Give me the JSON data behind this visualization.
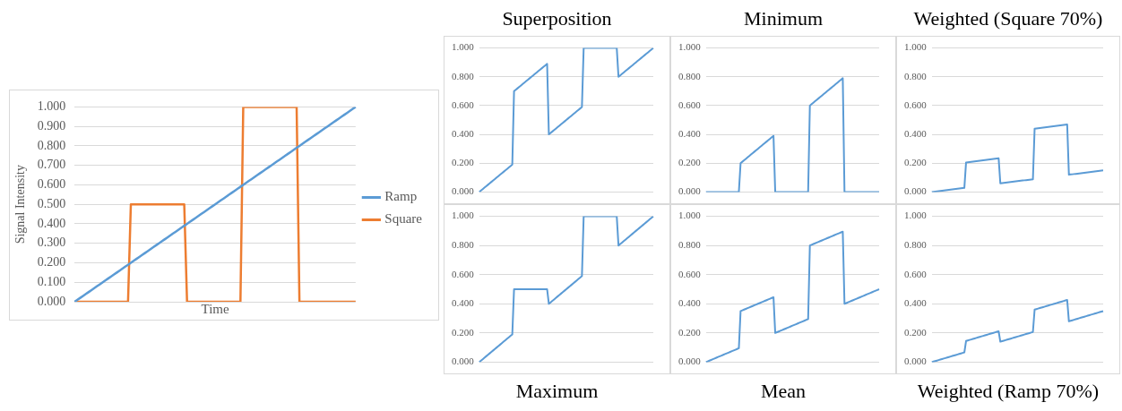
{
  "chart_data": [
    {
      "type": "line",
      "xlabel": "Time",
      "ylabel": "Signal Intensity",
      "legend": "right",
      "grid": "y",
      "marker": "none",
      "categories": [
        null,
        null,
        null,
        null,
        null,
        null,
        null,
        null,
        null,
        null,
        null,
        null,
        null,
        null,
        null,
        null,
        null,
        null,
        null,
        null,
        null,
        null,
        null,
        null,
        null,
        null,
        null,
        null,
        null,
        null,
        null,
        null,
        null,
        null,
        null,
        null,
        null,
        null,
        null,
        null,
        null,
        null,
        null,
        null,
        null,
        null,
        null,
        null,
        null,
        null,
        null,
        null,
        null,
        null,
        null,
        null,
        null,
        null,
        null,
        null,
        null,
        null,
        null,
        null,
        null,
        null,
        null,
        null,
        null,
        null,
        null,
        null,
        null,
        null,
        null,
        null,
        null,
        null,
        null,
        null,
        null,
        null,
        null,
        null,
        null,
        null,
        null,
        null,
        null,
        null,
        null,
        null,
        null,
        null,
        null,
        null,
        null,
        null,
        null,
        null,
        null
      ],
      "ylim": [
        0,
        1
      ],
      "yticks": [
        {
          "value": 0,
          "label": "0.000"
        },
        {
          "value": 0.1,
          "label": "0.100"
        },
        {
          "value": 0.2,
          "label": "0.200"
        },
        {
          "value": 0.3,
          "label": "0.300"
        },
        {
          "value": 0.4,
          "label": "0.400"
        },
        {
          "value": 0.5,
          "label": "0.500"
        },
        {
          "value": 0.6,
          "label": "0.600"
        },
        {
          "value": 0.7,
          "label": "0.700"
        },
        {
          "value": 0.8,
          "label": "0.800"
        },
        {
          "value": 0.9,
          "label": "0.900"
        },
        {
          "value": 1,
          "label": "1.000"
        }
      ],
      "series": [
        {
          "name": "Ramp",
          "color": "#5b9bd5",
          "values": [
            0,
            0.01,
            0.02,
            0.03,
            0.04,
            0.05,
            0.06,
            0.07,
            0.08,
            0.09,
            0.1,
            0.11,
            0.12,
            0.13,
            0.14,
            0.15,
            0.16,
            0.17,
            0.18,
            0.19,
            0.2,
            0.21,
            0.22,
            0.23,
            0.24,
            0.25,
            0.26,
            0.27,
            0.28,
            0.29,
            0.3,
            0.31,
            0.32,
            0.33,
            0.34,
            0.35,
            0.36,
            0.37,
            0.38,
            0.39,
            0.4,
            0.41,
            0.42,
            0.43,
            0.44,
            0.45,
            0.46,
            0.47,
            0.48,
            0.49,
            0.5,
            0.51,
            0.52,
            0.53,
            0.54,
            0.55,
            0.56,
            0.57,
            0.58,
            0.59,
            0.6,
            0.61,
            0.62,
            0.63,
            0.64,
            0.65,
            0.66,
            0.67,
            0.68,
            0.69,
            0.7,
            0.71,
            0.72,
            0.73,
            0.74,
            0.75,
            0.76,
            0.77,
            0.78,
            0.79,
            0.8,
            0.81,
            0.82,
            0.83,
            0.84,
            0.85,
            0.86,
            0.87,
            0.88,
            0.89,
            0.9,
            0.91,
            0.92,
            0.93,
            0.94,
            0.95,
            0.96,
            0.97,
            0.98,
            0.99,
            1
          ]
        },
        {
          "name": "Square",
          "color": "#ed7d31",
          "values": [
            0,
            0,
            0,
            0,
            0,
            0,
            0,
            0,
            0,
            0,
            0,
            0,
            0,
            0,
            0,
            0,
            0,
            0,
            0,
            0,
            0.5,
            0.5,
            0.5,
            0.5,
            0.5,
            0.5,
            0.5,
            0.5,
            0.5,
            0.5,
            0.5,
            0.5,
            0.5,
            0.5,
            0.5,
            0.5,
            0.5,
            0.5,
            0.5,
            0.5,
            0,
            0,
            0,
            0,
            0,
            0,
            0,
            0,
            0,
            0,
            0,
            0,
            0,
            0,
            0,
            0,
            0,
            0,
            0,
            0,
            1,
            1,
            1,
            1,
            1,
            1,
            1,
            1,
            1,
            1,
            1,
            1,
            1,
            1,
            1,
            1,
            1,
            1,
            1,
            1,
            0,
            0,
            0,
            0,
            0,
            0,
            0,
            0,
            0,
            0,
            0,
            0,
            0,
            0,
            0,
            0,
            0,
            0,
            0,
            0,
            0
          ]
        }
      ]
    },
    {
      "type": "line",
      "title": "Superposition",
      "grid": "y",
      "marker": "none",
      "categories": [
        null,
        null,
        null,
        null,
        null,
        null,
        null,
        null,
        null,
        null,
        null,
        null,
        null,
        null,
        null,
        null,
        null,
        null,
        null,
        null,
        null,
        null,
        null,
        null,
        null,
        null,
        null,
        null,
        null,
        null,
        null,
        null,
        null,
        null,
        null,
        null,
        null,
        null,
        null,
        null,
        null,
        null,
        null,
        null,
        null,
        null,
        null,
        null,
        null,
        null,
        null,
        null,
        null,
        null,
        null,
        null,
        null,
        null,
        null,
        null,
        null,
        null,
        null,
        null,
        null,
        null,
        null,
        null,
        null,
        null,
        null,
        null,
        null,
        null,
        null,
        null,
        null,
        null,
        null,
        null,
        null,
        null,
        null,
        null,
        null,
        null,
        null,
        null,
        null,
        null,
        null,
        null,
        null,
        null,
        null,
        null,
        null,
        null,
        null,
        null,
        null
      ],
      "ylim": [
        0,
        1
      ],
      "yticks": [
        {
          "value": 0,
          "label": "0.000"
        },
        {
          "value": 0.2,
          "label": "0.200"
        },
        {
          "value": 0.4,
          "label": "0.400"
        },
        {
          "value": 0.6,
          "label": "0.600"
        },
        {
          "value": 0.8,
          "label": "0.800"
        },
        {
          "value": 1,
          "label": "1.000"
        }
      ],
      "series": [
        {
          "color": "#5b9bd5",
          "values": [
            0,
            0.01,
            0.02,
            0.03,
            0.04,
            0.05,
            0.06,
            0.07,
            0.08,
            0.09,
            0.1,
            0.11,
            0.12,
            0.13,
            0.14,
            0.15,
            0.16,
            0.17,
            0.18,
            0.19,
            0.7,
            0.71,
            0.72,
            0.73,
            0.74,
            0.75,
            0.76,
            0.77,
            0.78,
            0.79,
            0.8,
            0.81,
            0.82,
            0.83,
            0.84,
            0.85,
            0.86,
            0.87,
            0.88,
            0.89,
            0.4,
            0.41,
            0.42,
            0.43,
            0.44,
            0.45,
            0.46,
            0.47,
            0.48,
            0.49,
            0.5,
            0.51,
            0.52,
            0.53,
            0.54,
            0.55,
            0.56,
            0.57,
            0.58,
            0.59,
            1,
            1,
            1,
            1,
            1,
            1,
            1,
            1,
            1,
            1,
            1,
            1,
            1,
            1,
            1,
            1,
            1,
            1,
            1,
            1,
            0.8,
            0.81,
            0.82,
            0.83,
            0.84,
            0.85,
            0.86,
            0.87,
            0.88,
            0.89,
            0.9,
            0.91,
            0.92,
            0.93,
            0.94,
            0.95,
            0.96,
            0.97,
            0.98,
            0.99,
            1
          ]
        }
      ]
    },
    {
      "type": "line",
      "title": "Minimum",
      "grid": "y",
      "marker": "none",
      "categories": [
        null,
        null,
        null,
        null,
        null,
        null,
        null,
        null,
        null,
        null,
        null,
        null,
        null,
        null,
        null,
        null,
        null,
        null,
        null,
        null,
        null,
        null,
        null,
        null,
        null,
        null,
        null,
        null,
        null,
        null,
        null,
        null,
        null,
        null,
        null,
        null,
        null,
        null,
        null,
        null,
        null,
        null,
        null,
        null,
        null,
        null,
        null,
        null,
        null,
        null,
        null,
        null,
        null,
        null,
        null,
        null,
        null,
        null,
        null,
        null,
        null,
        null,
        null,
        null,
        null,
        null,
        null,
        null,
        null,
        null,
        null,
        null,
        null,
        null,
        null,
        null,
        null,
        null,
        null,
        null,
        null,
        null,
        null,
        null,
        null,
        null,
        null,
        null,
        null,
        null,
        null,
        null,
        null,
        null,
        null,
        null,
        null,
        null,
        null,
        null,
        null
      ],
      "ylim": [
        0,
        1
      ],
      "yticks": [
        {
          "value": 0,
          "label": "0.000"
        },
        {
          "value": 0.2,
          "label": "0.200"
        },
        {
          "value": 0.4,
          "label": "0.400"
        },
        {
          "value": 0.6,
          "label": "0.600"
        },
        {
          "value": 0.8,
          "label": "0.800"
        },
        {
          "value": 1,
          "label": "1.000"
        }
      ],
      "series": [
        {
          "color": "#5b9bd5",
          "values": [
            0,
            0,
            0,
            0,
            0,
            0,
            0,
            0,
            0,
            0,
            0,
            0,
            0,
            0,
            0,
            0,
            0,
            0,
            0,
            0,
            0.2,
            0.21,
            0.22,
            0.23,
            0.24,
            0.25,
            0.26,
            0.27,
            0.28,
            0.29,
            0.3,
            0.31,
            0.32,
            0.33,
            0.34,
            0.35,
            0.36,
            0.37,
            0.38,
            0.39,
            0,
            0,
            0,
            0,
            0,
            0,
            0,
            0,
            0,
            0,
            0,
            0,
            0,
            0,
            0,
            0,
            0,
            0,
            0,
            0,
            0.6,
            0.61,
            0.62,
            0.63,
            0.64,
            0.65,
            0.66,
            0.67,
            0.68,
            0.69,
            0.7,
            0.71,
            0.72,
            0.73,
            0.74,
            0.75,
            0.76,
            0.77,
            0.78,
            0.79,
            0,
            0,
            0,
            0,
            0,
            0,
            0,
            0,
            0,
            0,
            0,
            0,
            0,
            0,
            0,
            0,
            0,
            0,
            0,
            0,
            0
          ]
        }
      ]
    },
    {
      "type": "line",
      "title": "Weighted (Square 70%)",
      "grid": "y",
      "marker": "none",
      "categories": [
        null,
        null,
        null,
        null,
        null,
        null,
        null,
        null,
        null,
        null,
        null,
        null,
        null,
        null,
        null,
        null,
        null,
        null,
        null,
        null,
        null,
        null,
        null,
        null,
        null,
        null,
        null,
        null,
        null,
        null,
        null,
        null,
        null,
        null,
        null,
        null,
        null,
        null,
        null,
        null,
        null,
        null,
        null,
        null,
        null,
        null,
        null,
        null,
        null,
        null,
        null,
        null,
        null,
        null,
        null,
        null,
        null,
        null,
        null,
        null,
        null,
        null,
        null,
        null,
        null,
        null,
        null,
        null,
        null,
        null,
        null,
        null,
        null,
        null,
        null,
        null,
        null,
        null,
        null,
        null,
        null,
        null,
        null,
        null,
        null,
        null,
        null,
        null,
        null,
        null,
        null,
        null,
        null,
        null,
        null,
        null,
        null,
        null,
        null,
        null,
        null
      ],
      "ylim": [
        0,
        1
      ],
      "yticks": [
        {
          "value": 0,
          "label": "0.000"
        },
        {
          "value": 0.2,
          "label": "0.200"
        },
        {
          "value": 0.4,
          "label": "0.400"
        },
        {
          "value": 0.6,
          "label": "0.600"
        },
        {
          "value": 0.8,
          "label": "0.800"
        },
        {
          "value": 1,
          "label": "1.000"
        }
      ],
      "series": [
        {
          "color": "#5b9bd5",
          "values": [
            0,
            0.0015,
            0.003,
            0.0045,
            0.006,
            0.0075,
            0.009,
            0.0105,
            0.012,
            0.0135,
            0.015,
            0.0165,
            0.018,
            0.0195,
            0.021,
            0.0225,
            0.024,
            0.0255,
            0.027,
            0.0285,
            0.205,
            0.2065,
            0.208,
            0.2095,
            0.211,
            0.2125,
            0.214,
            0.2155,
            0.217,
            0.2185,
            0.22,
            0.2215,
            0.223,
            0.2245,
            0.226,
            0.2275,
            0.229,
            0.2305,
            0.232,
            0.2335,
            0.06,
            0.0615,
            0.063,
            0.0645,
            0.066,
            0.0675,
            0.069,
            0.0705,
            0.072,
            0.0735,
            0.075,
            0.0765,
            0.078,
            0.0795,
            0.081,
            0.0825,
            0.084,
            0.0855,
            0.087,
            0.0885,
            0.44,
            0.4415,
            0.443,
            0.4445,
            0.446,
            0.4475,
            0.449,
            0.4505,
            0.452,
            0.4535,
            0.455,
            0.4565,
            0.458,
            0.4595,
            0.461,
            0.4625,
            0.464,
            0.4655,
            0.467,
            0.4685,
            0.12,
            0.1215,
            0.123,
            0.1245,
            0.126,
            0.1275,
            0.129,
            0.1305,
            0.132,
            0.1335,
            0.135,
            0.1365,
            0.138,
            0.1395,
            0.141,
            0.1425,
            0.144,
            0.1455,
            0.147,
            0.1485,
            0.15
          ]
        }
      ]
    },
    {
      "type": "line",
      "title": "Maximum",
      "grid": "y",
      "marker": "none",
      "categories": [
        null,
        null,
        null,
        null,
        null,
        null,
        null,
        null,
        null,
        null,
        null,
        null,
        null,
        null,
        null,
        null,
        null,
        null,
        null,
        null,
        null,
        null,
        null,
        null,
        null,
        null,
        null,
        null,
        null,
        null,
        null,
        null,
        null,
        null,
        null,
        null,
        null,
        null,
        null,
        null,
        null,
        null,
        null,
        null,
        null,
        null,
        null,
        null,
        null,
        null,
        null,
        null,
        null,
        null,
        null,
        null,
        null,
        null,
        null,
        null,
        null,
        null,
        null,
        null,
        null,
        null,
        null,
        null,
        null,
        null,
        null,
        null,
        null,
        null,
        null,
        null,
        null,
        null,
        null,
        null,
        null,
        null,
        null,
        null,
        null,
        null,
        null,
        null,
        null,
        null,
        null,
        null,
        null,
        null,
        null,
        null,
        null,
        null,
        null,
        null,
        null
      ],
      "ylim": [
        0,
        1
      ],
      "yticks": [
        {
          "value": 0,
          "label": "0.000"
        },
        {
          "value": 0.2,
          "label": "0.200"
        },
        {
          "value": 0.4,
          "label": "0.400"
        },
        {
          "value": 0.6,
          "label": "0.600"
        },
        {
          "value": 0.8,
          "label": "0.800"
        },
        {
          "value": 1,
          "label": "1.000"
        }
      ],
      "series": [
        {
          "color": "#5b9bd5",
          "values": [
            0,
            0.01,
            0.02,
            0.03,
            0.04,
            0.05,
            0.06,
            0.07,
            0.08,
            0.09,
            0.1,
            0.11,
            0.12,
            0.13,
            0.14,
            0.15,
            0.16,
            0.17,
            0.18,
            0.19,
            0.5,
            0.5,
            0.5,
            0.5,
            0.5,
            0.5,
            0.5,
            0.5,
            0.5,
            0.5,
            0.5,
            0.5,
            0.5,
            0.5,
            0.5,
            0.5,
            0.5,
            0.5,
            0.5,
            0.5,
            0.4,
            0.41,
            0.42,
            0.43,
            0.44,
            0.45,
            0.46,
            0.47,
            0.48,
            0.49,
            0.5,
            0.51,
            0.52,
            0.53,
            0.54,
            0.55,
            0.56,
            0.57,
            0.58,
            0.59,
            1,
            1,
            1,
            1,
            1,
            1,
            1,
            1,
            1,
            1,
            1,
            1,
            1,
            1,
            1,
            1,
            1,
            1,
            1,
            1,
            0.8,
            0.81,
            0.82,
            0.83,
            0.84,
            0.85,
            0.86,
            0.87,
            0.88,
            0.89,
            0.9,
            0.91,
            0.92,
            0.93,
            0.94,
            0.95,
            0.96,
            0.97,
            0.98,
            0.99,
            1
          ]
        }
      ]
    },
    {
      "type": "line",
      "title": "Mean",
      "grid": "y",
      "marker": "none",
      "categories": [
        null,
        null,
        null,
        null,
        null,
        null,
        null,
        null,
        null,
        null,
        null,
        null,
        null,
        null,
        null,
        null,
        null,
        null,
        null,
        null,
        null,
        null,
        null,
        null,
        null,
        null,
        null,
        null,
        null,
        null,
        null,
        null,
        null,
        null,
        null,
        null,
        null,
        null,
        null,
        null,
        null,
        null,
        null,
        null,
        null,
        null,
        null,
        null,
        null,
        null,
        null,
        null,
        null,
        null,
        null,
        null,
        null,
        null,
        null,
        null,
        null,
        null,
        null,
        null,
        null,
        null,
        null,
        null,
        null,
        null,
        null,
        null,
        null,
        null,
        null,
        null,
        null,
        null,
        null,
        null,
        null,
        null,
        null,
        null,
        null,
        null,
        null,
        null,
        null,
        null,
        null,
        null,
        null,
        null,
        null,
        null,
        null,
        null,
        null,
        null,
        null
      ],
      "ylim": [
        0,
        1
      ],
      "yticks": [
        {
          "value": 0,
          "label": "0.000"
        },
        {
          "value": 0.2,
          "label": "0.200"
        },
        {
          "value": 0.4,
          "label": "0.400"
        },
        {
          "value": 0.6,
          "label": "0.600"
        },
        {
          "value": 0.8,
          "label": "0.800"
        },
        {
          "value": 1,
          "label": "1.000"
        }
      ],
      "series": [
        {
          "color": "#5b9bd5",
          "values": [
            0,
            0.005,
            0.01,
            0.015,
            0.02,
            0.025,
            0.03,
            0.035,
            0.04,
            0.045,
            0.05,
            0.055,
            0.06,
            0.065,
            0.07,
            0.075,
            0.08,
            0.085,
            0.09,
            0.095,
            0.35,
            0.355,
            0.36,
            0.365,
            0.37,
            0.375,
            0.38,
            0.385,
            0.39,
            0.395,
            0.4,
            0.405,
            0.41,
            0.415,
            0.42,
            0.425,
            0.43,
            0.435,
            0.44,
            0.445,
            0.2,
            0.205,
            0.21,
            0.215,
            0.22,
            0.225,
            0.23,
            0.235,
            0.24,
            0.245,
            0.25,
            0.255,
            0.26,
            0.265,
            0.27,
            0.275,
            0.28,
            0.285,
            0.29,
            0.295,
            0.8,
            0.805,
            0.81,
            0.815,
            0.82,
            0.825,
            0.83,
            0.835,
            0.84,
            0.845,
            0.85,
            0.855,
            0.86,
            0.865,
            0.87,
            0.875,
            0.88,
            0.885,
            0.89,
            0.895,
            0.4,
            0.405,
            0.41,
            0.415,
            0.42,
            0.425,
            0.43,
            0.435,
            0.44,
            0.445,
            0.45,
            0.455,
            0.46,
            0.465,
            0.47,
            0.475,
            0.48,
            0.485,
            0.49,
            0.495,
            0.5
          ]
        }
      ]
    },
    {
      "type": "line",
      "title": "Weighted (Ramp 70%)",
      "grid": "y",
      "marker": "none",
      "categories": [
        null,
        null,
        null,
        null,
        null,
        null,
        null,
        null,
        null,
        null,
        null,
        null,
        null,
        null,
        null,
        null,
        null,
        null,
        null,
        null,
        null,
        null,
        null,
        null,
        null,
        null,
        null,
        null,
        null,
        null,
        null,
        null,
        null,
        null,
        null,
        null,
        null,
        null,
        null,
        null,
        null,
        null,
        null,
        null,
        null,
        null,
        null,
        null,
        null,
        null,
        null,
        null,
        null,
        null,
        null,
        null,
        null,
        null,
        null,
        null,
        null,
        null,
        null,
        null,
        null,
        null,
        null,
        null,
        null,
        null,
        null,
        null,
        null,
        null,
        null,
        null,
        null,
        null,
        null,
        null,
        null,
        null,
        null,
        null,
        null,
        null,
        null,
        null,
        null,
        null,
        null,
        null,
        null,
        null,
        null,
        null,
        null,
        null,
        null,
        null,
        null
      ],
      "ylim": [
        0,
        1
      ],
      "yticks": [
        {
          "value": 0,
          "label": "0.000"
        },
        {
          "value": 0.2,
          "label": "0.200"
        },
        {
          "value": 0.4,
          "label": "0.400"
        },
        {
          "value": 0.6,
          "label": "0.600"
        },
        {
          "value": 0.8,
          "label": "0.800"
        },
        {
          "value": 1,
          "label": "1.000"
        }
      ],
      "series": [
        {
          "color": "#5b9bd5",
          "values": [
            0,
            0.0035,
            0.007,
            0.0105,
            0.014,
            0.0175,
            0.021,
            0.0245,
            0.028,
            0.0315,
            0.035,
            0.0385,
            0.042,
            0.0455,
            0.049,
            0.0525,
            0.056,
            0.0595,
            0.063,
            0.0665,
            0.145,
            0.1485,
            0.152,
            0.1555,
            0.159,
            0.1625,
            0.166,
            0.1695,
            0.173,
            0.1765,
            0.18,
            0.1835,
            0.187,
            0.1905,
            0.194,
            0.1975,
            0.201,
            0.2045,
            0.208,
            0.2115,
            0.14,
            0.1435,
            0.147,
            0.1505,
            0.154,
            0.1575,
            0.161,
            0.1645,
            0.168,
            0.1715,
            0.175,
            0.1785,
            0.182,
            0.1855,
            0.189,
            0.1925,
            0.196,
            0.1995,
            0.203,
            0.2065,
            0.36,
            0.3635,
            0.367,
            0.3705,
            0.374,
            0.3775,
            0.381,
            0.3845,
            0.388,
            0.3915,
            0.395,
            0.3985,
            0.402,
            0.4055,
            0.409,
            0.4125,
            0.416,
            0.4195,
            0.423,
            0.4265,
            0.28,
            0.2835,
            0.287,
            0.2905,
            0.294,
            0.2975,
            0.301,
            0.3045,
            0.308,
            0.3115,
            0.315,
            0.3185,
            0.322,
            0.3255,
            0.329,
            0.3325,
            0.336,
            0.3395,
            0.343,
            0.3465,
            0.35
          ]
        }
      ]
    }
  ]
}
